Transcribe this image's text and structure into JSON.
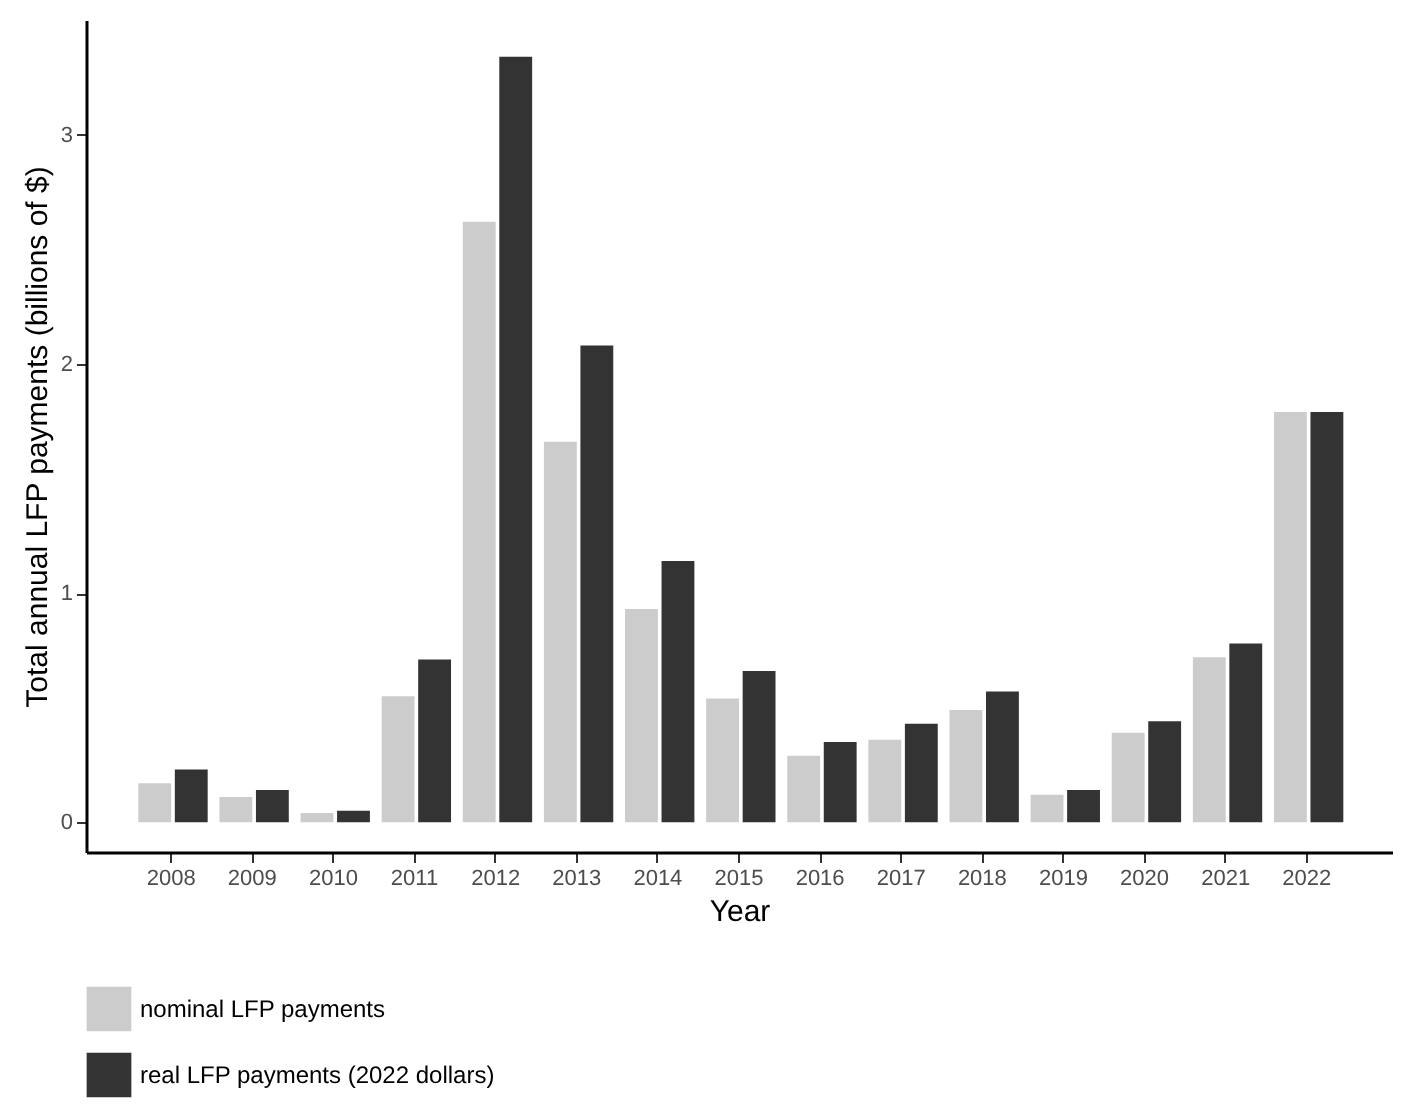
{
  "chart_data": {
    "type": "bar",
    "xlabel": "Year",
    "ylabel": "Total annual LFP payments (billions of $)",
    "categories": [
      "2008",
      "2009",
      "2010",
      "2011",
      "2012",
      "2013",
      "2014",
      "2015",
      "2016",
      "2017",
      "2018",
      "2019",
      "2020",
      "2021",
      "2022"
    ],
    "series": [
      {
        "name": "nominal LFP payments",
        "color": "#cccccc",
        "values": [
          0.17,
          0.11,
          0.04,
          0.55,
          2.62,
          1.66,
          0.93,
          0.54,
          0.29,
          0.36,
          0.49,
          0.12,
          0.39,
          0.72,
          1.79
        ]
      },
      {
        "name": "real LFP payments (2022 dollars)",
        "color": "#333333",
        "values": [
          0.23,
          0.14,
          0.05,
          0.71,
          3.34,
          2.08,
          1.14,
          0.66,
          0.35,
          0.43,
          0.57,
          0.14,
          0.44,
          0.78,
          1.79
        ]
      }
    ],
    "ylim": [
      -0.13,
      3.5
    ],
    "yticks": [
      0,
      1,
      2,
      3
    ],
    "grid": false,
    "legend": "bottom"
  }
}
